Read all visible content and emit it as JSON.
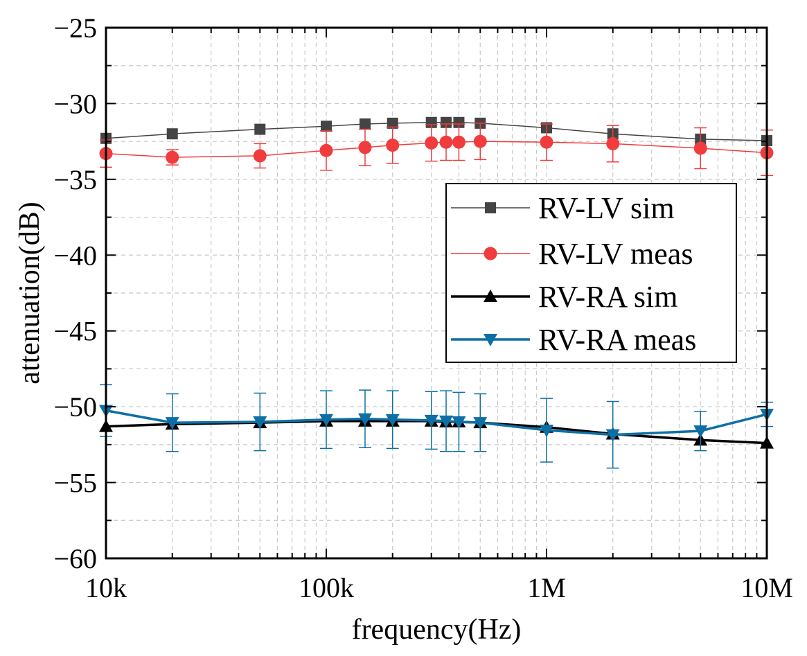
{
  "chart_data": {
    "type": "line",
    "xscale": "log",
    "xlabel": "frequency(Hz)",
    "ylabel": "attenuation(dB)",
    "xlim": [
      10000,
      10000000
    ],
    "ylim": [
      -60,
      -25
    ],
    "xticks": [
      {
        "value": 10000,
        "label": "10k"
      },
      {
        "value": 100000,
        "label": "100k"
      },
      {
        "value": 1000000,
        "label": "1M"
      },
      {
        "value": 10000000,
        "label": "10M"
      }
    ],
    "yticks": [
      {
        "value": -25,
        "label": "−25"
      },
      {
        "value": -30,
        "label": "−30"
      },
      {
        "value": -35,
        "label": "−35"
      },
      {
        "value": -40,
        "label": "−40"
      },
      {
        "value": -45,
        "label": "−45"
      },
      {
        "value": -50,
        "label": "−50"
      },
      {
        "value": -55,
        "label": "−55"
      },
      {
        "value": -60,
        "label": "−60"
      }
    ],
    "grid": true,
    "legend_position": "right",
    "x": [
      10000,
      20000,
      50000,
      100000,
      150000,
      200000,
      300000,
      350000,
      400000,
      500000,
      1000000,
      2000000,
      5000000,
      10000000
    ],
    "series": [
      {
        "name": "RV-LV sim",
        "color": "#444444",
        "marker": "square",
        "values": [
          -32.3,
          -32.0,
          -31.7,
          -31.5,
          -31.35,
          -31.3,
          -31.25,
          -31.25,
          -31.25,
          -31.3,
          -31.6,
          -32.0,
          -32.35,
          -32.45
        ]
      },
      {
        "name": "RV-LV meas",
        "color": "#f03c3c",
        "marker": "circle",
        "values": [
          -33.3,
          -33.55,
          -33.45,
          -33.1,
          -32.9,
          -32.75,
          -32.6,
          -32.55,
          -32.55,
          -32.5,
          -32.55,
          -32.65,
          -32.95,
          -33.25
        ],
        "error": [
          0.9,
          0.5,
          0.8,
          1.3,
          1.2,
          1.2,
          1.2,
          1.2,
          1.2,
          1.2,
          1.2,
          1.2,
          1.35,
          1.5
        ]
      },
      {
        "name": "RV-RA sim",
        "color": "#000000",
        "marker": "triangle-up",
        "values": [
          -51.3,
          -51.15,
          -51.05,
          -50.95,
          -50.95,
          -50.95,
          -50.95,
          -51.0,
          -51.0,
          -51.05,
          -51.35,
          -51.8,
          -52.2,
          -52.4
        ]
      },
      {
        "name": "RV-RA meas",
        "color": "#0e6fa4",
        "marker": "triangle-down",
        "values": [
          -50.25,
          -51.05,
          -51.0,
          -50.85,
          -50.8,
          -50.85,
          -50.9,
          -50.95,
          -51.0,
          -51.05,
          -51.55,
          -51.85,
          -51.6,
          -50.5
        ],
        "error": [
          1.7,
          1.9,
          1.9,
          1.9,
          1.9,
          1.9,
          1.9,
          2.0,
          1.95,
          1.9,
          2.1,
          2.2,
          1.3,
          0.8
        ]
      }
    ]
  }
}
